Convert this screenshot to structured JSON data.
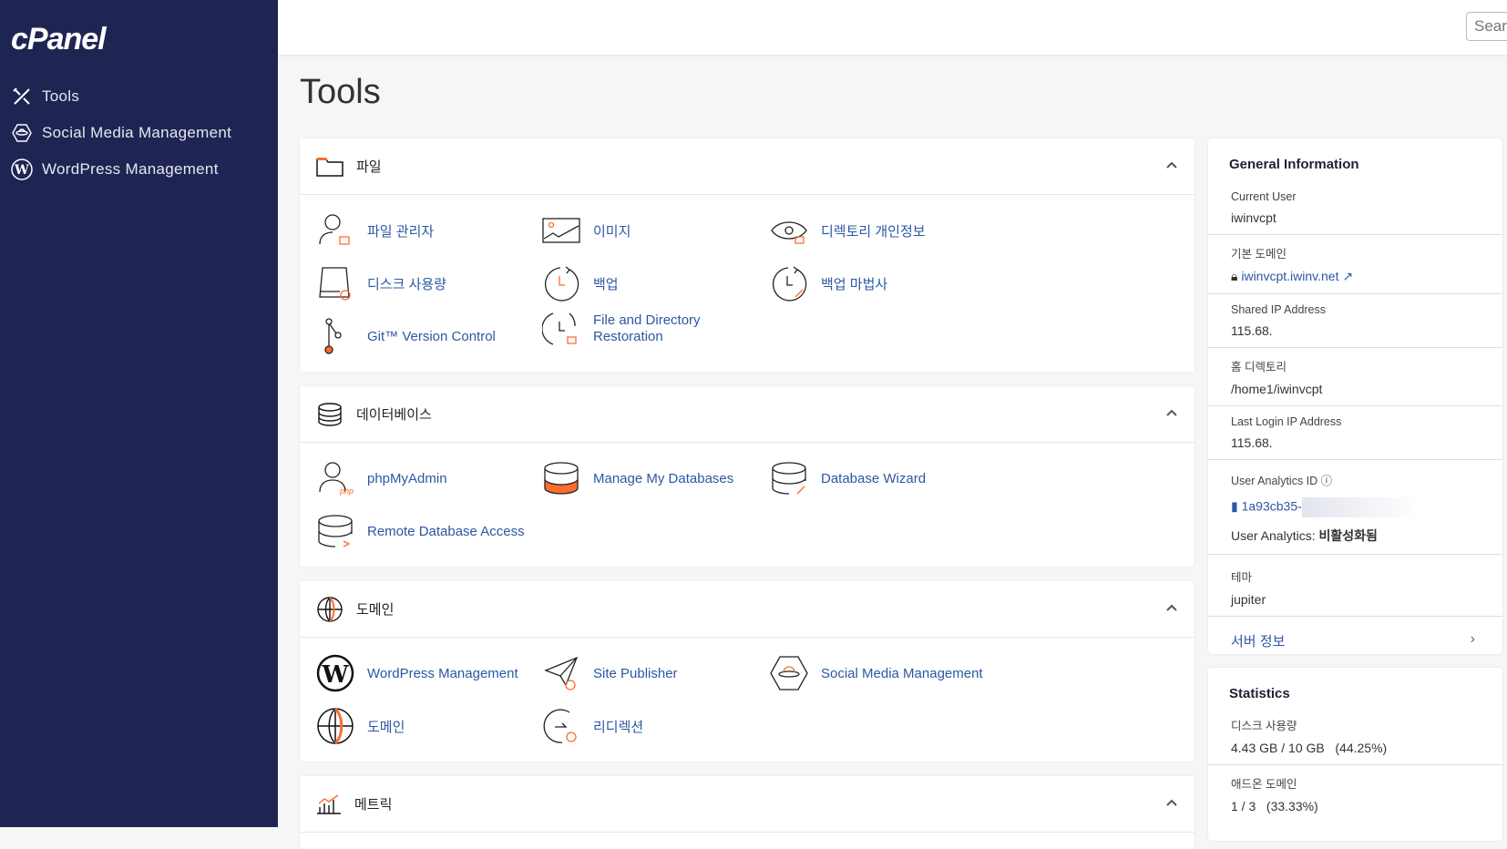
{
  "sidebar": {
    "logo": "cPanel",
    "items": [
      {
        "label": "Tools",
        "icon": "tools-icon"
      },
      {
        "label": "Social Media Management",
        "icon": "social-media-icon"
      },
      {
        "label": "WordPress Management",
        "icon": "wordpress-icon"
      }
    ]
  },
  "header": {
    "search_placeholder": "Search"
  },
  "page_title": "Tools",
  "colors": {
    "sidebar": "#1f2553",
    "accent": "#ff6c2c",
    "link": "#2d57a3"
  },
  "sections": [
    {
      "title": "파일",
      "icon": "folder-icon",
      "items": [
        {
          "label": "파일 관리자",
          "icon": "file-manager-icon"
        },
        {
          "label": "이미지",
          "icon": "images-icon"
        },
        {
          "label": "디렉토리 개인정보",
          "icon": "directory-privacy-icon"
        },
        {
          "label": "디스크 사용량",
          "icon": "disk-usage-icon"
        },
        {
          "label": "백업",
          "icon": "backup-icon"
        },
        {
          "label": "백업 마법사",
          "icon": "backup-wizard-icon"
        },
        {
          "label": "Git™ Version Control",
          "icon": "git-icon"
        },
        {
          "label": "File and Directory Restoration",
          "icon": "restore-icon"
        }
      ]
    },
    {
      "title": "데이터베이스",
      "icon": "database-icon",
      "items": [
        {
          "label": "phpMyAdmin",
          "icon": "phpmyadmin-icon"
        },
        {
          "label": "Manage My Databases",
          "icon": "database-icon"
        },
        {
          "label": "Database Wizard",
          "icon": "database-wizard-icon"
        },
        {
          "label": "Remote Database Access",
          "icon": "remote-database-icon"
        }
      ]
    },
    {
      "title": "도메인",
      "icon": "globe-icon",
      "items": [
        {
          "label": "WordPress Management",
          "icon": "wordpress-icon"
        },
        {
          "label": "Site Publisher",
          "icon": "site-publisher-icon"
        },
        {
          "label": "Social Media Management",
          "icon": "social-media-icon"
        },
        {
          "label": "도메인",
          "icon": "globe-icon"
        },
        {
          "label": "리디렉션",
          "icon": "redirect-icon"
        }
      ]
    },
    {
      "title": "메트릭",
      "icon": "metrics-icon",
      "items": []
    }
  ],
  "general": {
    "title": "General Information",
    "current_user_label": "Current User",
    "current_user": "iwinvcpt",
    "domain_label": "기본 도메인",
    "domain": "iwinvcpt.iwinv.net",
    "shared_ip_label": "Shared IP Address",
    "shared_ip": "115.68.",
    "home_label": "홈 디렉토리",
    "home": "/home1/iwinvcpt",
    "last_login_label": "Last Login IP Address",
    "last_login": "115.68.",
    "analytics_id_label": "User Analytics ID",
    "analytics_id": "1a93cb35-",
    "analytics_label": "User Analytics:",
    "analytics_status": "비활성화됨",
    "theme_label": "테마",
    "theme": "jupiter",
    "server_info": "서버 정보"
  },
  "statistics": {
    "title": "Statistics",
    "disk_label": "디스크 사용량",
    "disk_value": "4.43 GB / 10 GB   (44.25%)",
    "disk_percent": 44.25,
    "addon_label": "애드온 도메인",
    "addon_value": "1 / 3   (33.33%)",
    "addon_percent": 33.33
  }
}
